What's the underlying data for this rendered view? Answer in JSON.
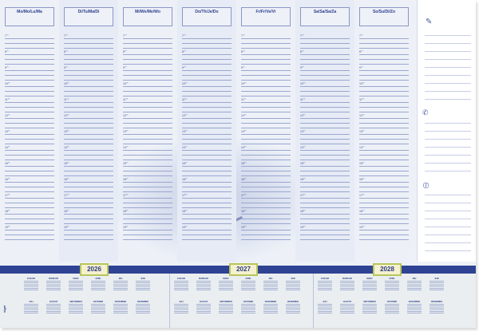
{
  "days": [
    "Mo/Mo/Lu/Ma",
    "Di/Tu/Ma/Di",
    "Mi/We/Me/Wo",
    "Do/Th/Je/Do",
    "Fr/Fr/Ve/Vr",
    "Sa/Sa/Sa/Za",
    "So/Su/Di/Zo"
  ],
  "hours": [
    "7°°",
    "8°°",
    "9°°",
    "10°°",
    "11°°",
    "12°°",
    "13°°",
    "14°°",
    "15°°",
    "16°°",
    "17°°",
    "18°°",
    "19°°"
  ],
  "years": [
    "2026",
    "2027",
    "2028"
  ],
  "brand": "sigel",
  "side_icons": [
    "pencil-icon",
    "phone-icon",
    "info-icon"
  ],
  "months_row1": [
    "JANUAR",
    "FEBRUAR",
    "MÄRZ",
    "APRIL",
    "MAI",
    "JUNI"
  ],
  "months_row2": [
    "JULI",
    "AUGUST",
    "SEPTEMBER",
    "OKTOBER",
    "NOVEMBER",
    "DEZEMBER"
  ],
  "colors": {
    "accent": "#2f4394",
    "line": "#9aa6d0",
    "year_border": "#b7c65c",
    "year_fill": "#f5f1cf"
  }
}
